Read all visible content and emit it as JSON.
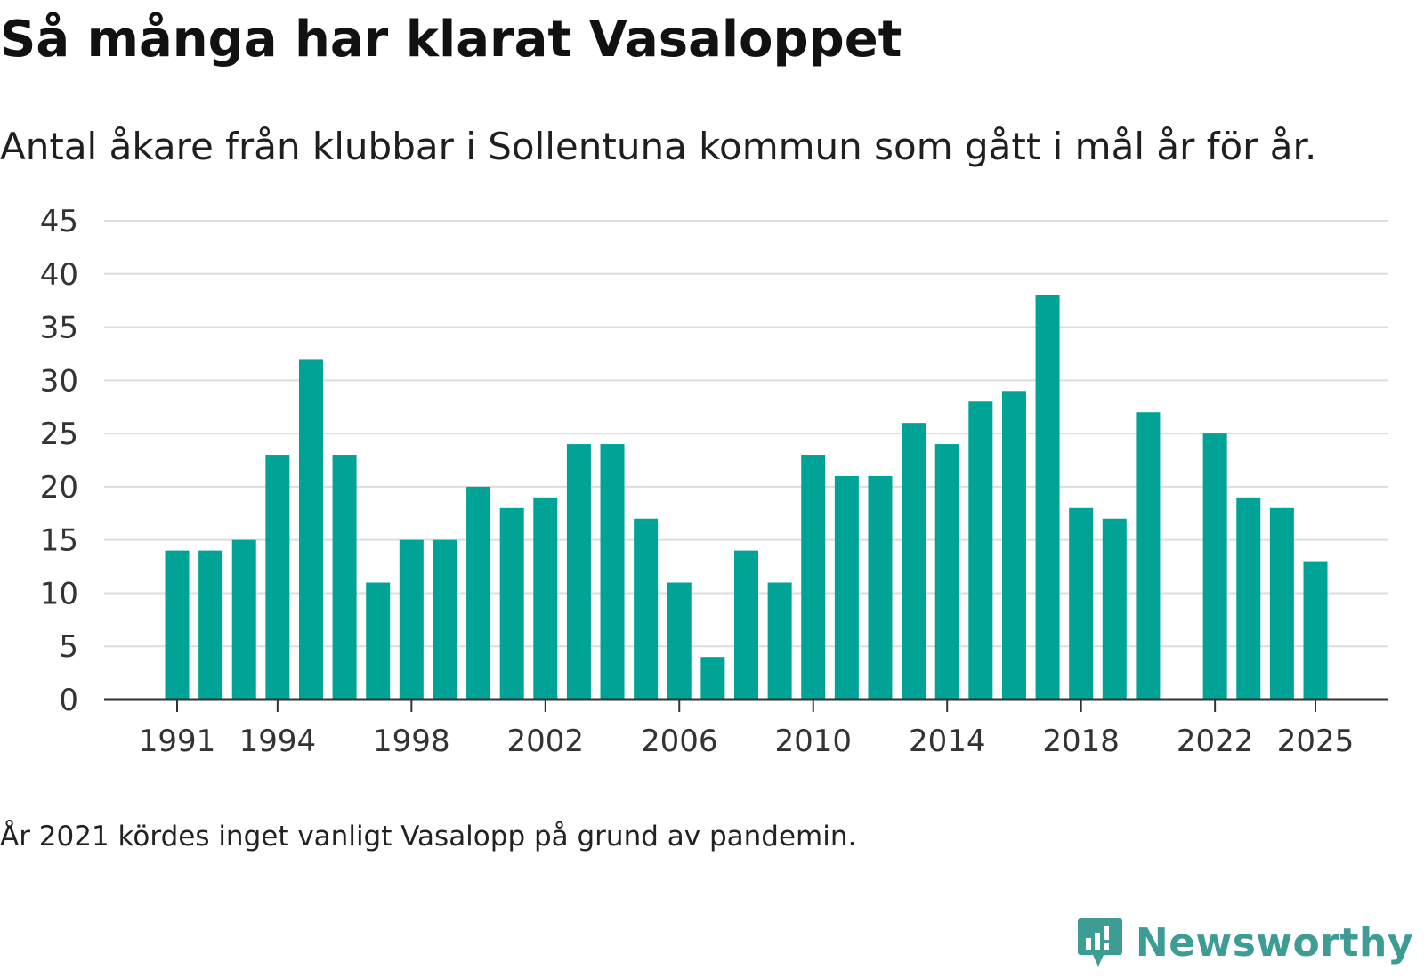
{
  "title": "Så många har klarat Vasaloppet",
  "subtitle": "Antal åkare från klubbar i Sollentuna kommun som gått i mål år för år.",
  "note": "År 2021 kördes inget vanligt Vasalopp på grund av pandemin.",
  "brand": {
    "name": "Newsworthy",
    "color": "#3d9c94"
  },
  "colors": {
    "bar": "#00a396",
    "grid": "#dddddd",
    "axis": "#333333",
    "tick_label": "#333333"
  },
  "chart_data": {
    "type": "bar",
    "title": "Så många har klarat Vasaloppet",
    "xlabel": "",
    "ylabel": "",
    "ylim": [
      0,
      45
    ],
    "yticks": [
      0,
      5,
      10,
      15,
      20,
      25,
      30,
      35,
      40,
      45
    ],
    "xticks": [
      1991,
      1994,
      1998,
      2002,
      2006,
      2010,
      2014,
      2018,
      2022,
      2025
    ],
    "grid": true,
    "categories": [
      1991,
      1992,
      1993,
      1994,
      1995,
      1996,
      1997,
      1998,
      1999,
      2000,
      2001,
      2002,
      2003,
      2004,
      2005,
      2006,
      2007,
      2008,
      2009,
      2010,
      2011,
      2012,
      2013,
      2014,
      2015,
      2016,
      2017,
      2018,
      2019,
      2020,
      2021,
      2022,
      2023,
      2024,
      2025
    ],
    "values": [
      14,
      14,
      15,
      23,
      32,
      23,
      11,
      15,
      15,
      20,
      18,
      19,
      24,
      24,
      17,
      11,
      4,
      14,
      11,
      23,
      21,
      21,
      26,
      24,
      28,
      29,
      38,
      18,
      17,
      27,
      null,
      25,
      19,
      18,
      13
    ]
  }
}
